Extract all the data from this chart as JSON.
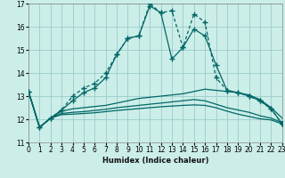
{
  "xlabel": "Humidex (Indice chaleur)",
  "xlim": [
    0,
    23
  ],
  "ylim": [
    11,
    17
  ],
  "yticks": [
    11,
    12,
    13,
    14,
    15,
    16,
    17
  ],
  "xticks": [
    0,
    1,
    2,
    3,
    4,
    5,
    6,
    7,
    8,
    9,
    10,
    11,
    12,
    13,
    14,
    15,
    16,
    17,
    18,
    19,
    20,
    21,
    22,
    23
  ],
  "bg_color": "#cceee8",
  "grid_color": "#99cccc",
  "line_color": "#006666",
  "s1_y": [
    13.2,
    11.65,
    12.05,
    12.4,
    12.8,
    13.15,
    13.35,
    13.8,
    14.8,
    15.5,
    15.6,
    16.9,
    16.6,
    14.6,
    15.1,
    15.9,
    15.6,
    14.35,
    13.25,
    13.15,
    13.0,
    12.8,
    12.45,
    11.8
  ],
  "s2_y": [
    13.2,
    11.65,
    12.05,
    12.4,
    13.0,
    13.35,
    13.55,
    14.0,
    14.8,
    15.5,
    15.6,
    17.0,
    16.6,
    16.7,
    15.1,
    16.55,
    16.2,
    13.8,
    13.25,
    13.15,
    13.0,
    12.8,
    12.45,
    11.8
  ],
  "s3_y": [
    13.2,
    11.65,
    12.05,
    12.35,
    12.45,
    12.5,
    12.55,
    12.6,
    12.7,
    12.8,
    12.9,
    12.95,
    13.0,
    13.05,
    13.1,
    13.2,
    13.3,
    13.25,
    13.2,
    13.15,
    13.05,
    12.85,
    12.5,
    12.05
  ],
  "s4_y": [
    13.2,
    11.65,
    12.05,
    12.25,
    12.3,
    12.33,
    12.38,
    12.43,
    12.5,
    12.55,
    12.6,
    12.65,
    12.7,
    12.75,
    12.8,
    12.85,
    12.8,
    12.65,
    12.5,
    12.4,
    12.3,
    12.15,
    12.05,
    11.85
  ],
  "s5_y": [
    13.2,
    11.65,
    12.05,
    12.2,
    12.22,
    12.25,
    12.28,
    12.33,
    12.38,
    12.42,
    12.46,
    12.5,
    12.54,
    12.57,
    12.6,
    12.62,
    12.6,
    12.5,
    12.35,
    12.22,
    12.12,
    12.02,
    11.97,
    11.8
  ]
}
